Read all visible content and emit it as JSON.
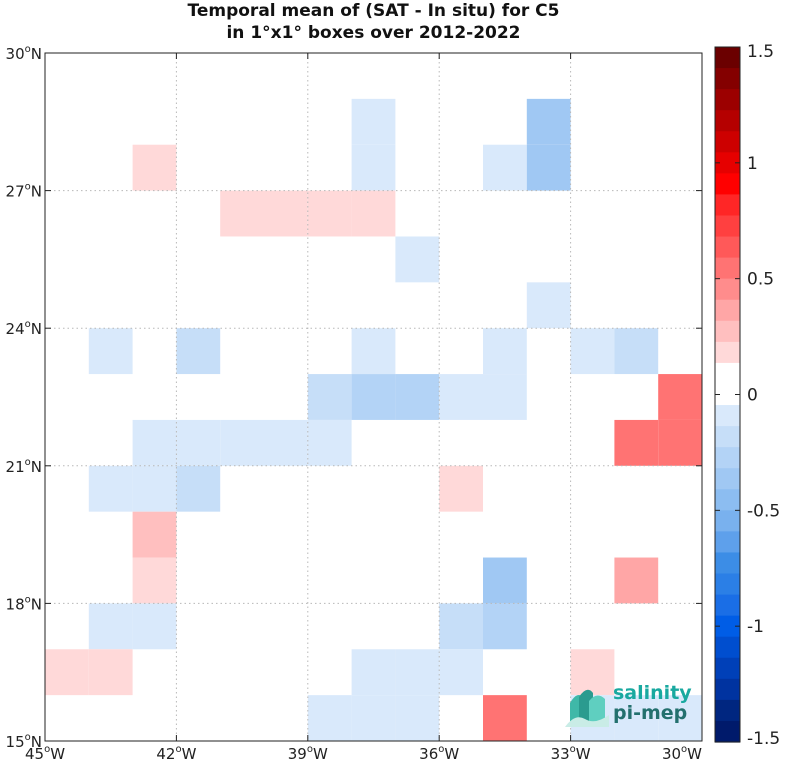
{
  "chart_data": {
    "type": "heatmap",
    "title": "Temporal mean of (SAT - In situ) for C5",
    "subtitle": "in 1°x1° boxes over 2012-2022",
    "x_range": [
      -45,
      -30
    ],
    "y_range": [
      15,
      30
    ],
    "x_ticks": [
      {
        "value": -45,
        "label": "45",
        "suffix": "W"
      },
      {
        "value": -42,
        "label": "42",
        "suffix": "W"
      },
      {
        "value": -39,
        "label": "39",
        "suffix": "W"
      },
      {
        "value": -36,
        "label": "36",
        "suffix": "W"
      },
      {
        "value": -33,
        "label": "33",
        "suffix": "W"
      },
      {
        "value": -30,
        "label": "30",
        "suffix": "W"
      }
    ],
    "y_ticks": [
      {
        "value": 15,
        "label": "15",
        "suffix": "N"
      },
      {
        "value": 18,
        "label": "18",
        "suffix": "N"
      },
      {
        "value": 21,
        "label": "21",
        "suffix": "N"
      },
      {
        "value": 24,
        "label": "24",
        "suffix": "N"
      },
      {
        "value": 27,
        "label": "27",
        "suffix": "N"
      },
      {
        "value": 30,
        "label": "30",
        "suffix": "N"
      }
    ],
    "grid": true,
    "colorbar": {
      "range": [
        -1.5,
        1.5
      ],
      "ticks": [
        "1.5",
        "1",
        "0.5",
        "0",
        "-0.5",
        "-1",
        "-1.5"
      ],
      "tick_values": [
        1.5,
        1,
        0.5,
        0,
        -0.5,
        -1,
        -1.5
      ],
      "colors_top_to_bottom": [
        "#6b0000",
        "#840000",
        "#9c0000",
        "#b50000",
        "#cd0000",
        "#e60000",
        "#ff0000",
        "#ff2626",
        "#ff4040",
        "#ff5959",
        "#ff7373",
        "#ff8c8c",
        "#ffa6a6",
        "#ffbfbf",
        "#ffd9d9",
        "#ffffff",
        "#ffffff",
        "#d9e9fb",
        "#c6def8",
        "#b3d3f6",
        "#a0c8f3",
        "#8cbdf1",
        "#79b1ee",
        "#5ea0eb",
        "#3c8de6",
        "#2b7fe6",
        "#1a6ee6",
        "#005de6",
        "#004ecf",
        "#0040b8",
        "#0033a0",
        "#002680",
        "#001a6b"
      ]
    },
    "cells": [
      {
        "lon": -38,
        "lat": 28,
        "value": -0.1
      },
      {
        "lon": -34,
        "lat": 28,
        "value": -0.35
      },
      {
        "lon": -43,
        "lat": 27,
        "value": 0.15
      },
      {
        "lon": -38,
        "lat": 27,
        "value": -0.1
      },
      {
        "lon": -35,
        "lat": 27,
        "value": -0.1
      },
      {
        "lon": -34,
        "lat": 27,
        "value": -0.35
      },
      {
        "lon": -41,
        "lat": 26,
        "value": 0.15
      },
      {
        "lon": -40,
        "lat": 26,
        "value": 0.15
      },
      {
        "lon": -39,
        "lat": 26,
        "value": 0.15
      },
      {
        "lon": -38,
        "lat": 26,
        "value": 0.15
      },
      {
        "lon": -37,
        "lat": 25,
        "value": -0.1
      },
      {
        "lon": -34,
        "lat": 24,
        "value": -0.1
      },
      {
        "lon": -44,
        "lat": 23,
        "value": -0.1
      },
      {
        "lon": -42,
        "lat": 23,
        "value": -0.2
      },
      {
        "lon": -38,
        "lat": 23,
        "value": -0.1
      },
      {
        "lon": -35,
        "lat": 23,
        "value": -0.1
      },
      {
        "lon": -33,
        "lat": 23,
        "value": -0.1
      },
      {
        "lon": -32,
        "lat": 23,
        "value": -0.2
      },
      {
        "lon": -39,
        "lat": 22,
        "value": -0.2
      },
      {
        "lon": -38,
        "lat": 22,
        "value": -0.25
      },
      {
        "lon": -37,
        "lat": 22,
        "value": -0.25
      },
      {
        "lon": -36,
        "lat": 22,
        "value": -0.1
      },
      {
        "lon": -35,
        "lat": 22,
        "value": -0.1
      },
      {
        "lon": -31,
        "lat": 22,
        "value": 0.55
      },
      {
        "lon": -43,
        "lat": 21,
        "value": -0.1
      },
      {
        "lon": -42,
        "lat": 21,
        "value": -0.1
      },
      {
        "lon": -41,
        "lat": 21,
        "value": -0.1
      },
      {
        "lon": -40,
        "lat": 21,
        "value": -0.1
      },
      {
        "lon": -39,
        "lat": 21,
        "value": -0.1
      },
      {
        "lon": -32,
        "lat": 21,
        "value": 0.55
      },
      {
        "lon": -31,
        "lat": 21,
        "value": 0.55
      },
      {
        "lon": -44,
        "lat": 20,
        "value": -0.1
      },
      {
        "lon": -43,
        "lat": 20,
        "value": -0.1
      },
      {
        "lon": -42,
        "lat": 20,
        "value": -0.2
      },
      {
        "lon": -36,
        "lat": 20,
        "value": 0.15
      },
      {
        "lon": -43,
        "lat": 19,
        "value": 0.3
      },
      {
        "lon": -43,
        "lat": 18,
        "value": 0.15
      },
      {
        "lon": -35,
        "lat": 18,
        "value": -0.4
      },
      {
        "lon": -32,
        "lat": 18,
        "value": 0.4
      },
      {
        "lon": -44,
        "lat": 17,
        "value": -0.1
      },
      {
        "lon": -43,
        "lat": 17,
        "value": -0.1
      },
      {
        "lon": -36,
        "lat": 17,
        "value": -0.2
      },
      {
        "lon": -35,
        "lat": 17,
        "value": -0.25
      },
      {
        "lon": -45,
        "lat": 16,
        "value": 0.15
      },
      {
        "lon": -44,
        "lat": 16,
        "value": 0.15
      },
      {
        "lon": -38,
        "lat": 16,
        "value": -0.1
      },
      {
        "lon": -37,
        "lat": 16,
        "value": -0.1
      },
      {
        "lon": -36,
        "lat": 16,
        "value": -0.1
      },
      {
        "lon": -33,
        "lat": 16,
        "value": 0.15
      },
      {
        "lon": -39,
        "lat": 15,
        "value": -0.1
      },
      {
        "lon": -38,
        "lat": 15,
        "value": -0.1
      },
      {
        "lon": -37,
        "lat": 15,
        "value": -0.1
      },
      {
        "lon": -35,
        "lat": 15,
        "value": 0.55
      },
      {
        "lon": -33,
        "lat": 15,
        "value": -0.1
      },
      {
        "lon": -32,
        "lat": 15,
        "value": -0.1
      },
      {
        "lon": -31,
        "lat": 15,
        "value": -0.1
      }
    ]
  },
  "logo": {
    "line1": "salinity",
    "line2": "pi-mep"
  }
}
